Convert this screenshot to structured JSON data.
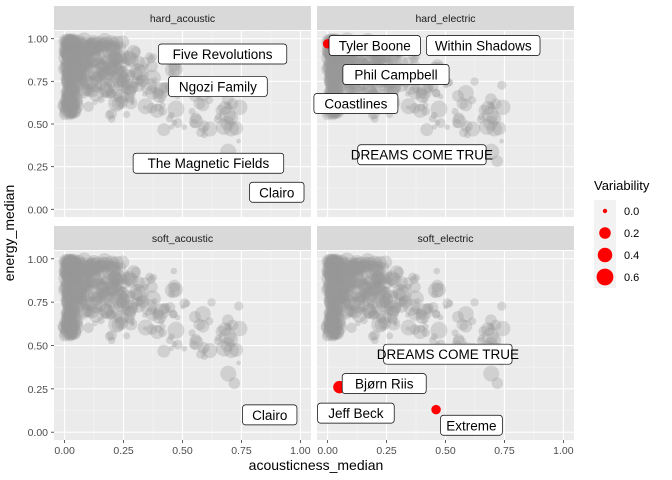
{
  "chart_data": {
    "type": "scatter",
    "xlabel": "acousticness_median",
    "ylabel": "energy_median",
    "xlim": [
      0,
      1
    ],
    "ylim": [
      0,
      1
    ],
    "x_ticks": [
      "0.00",
      "0.25",
      "0.50",
      "0.75",
      "1.00"
    ],
    "y_ticks": [
      "0.00",
      "0.25",
      "0.50",
      "0.75",
      "1.00"
    ],
    "grid": true,
    "legend": {
      "title": "Variability",
      "position": "right",
      "entries": [
        "0.0",
        "0.2",
        "0.4",
        "0.6"
      ],
      "values": [
        0.0,
        0.2,
        0.4,
        0.6
      ],
      "color": "#ff0000"
    },
    "colors": {
      "background_points": "#999999",
      "highlight": "#ff0000",
      "panel": "#ebebeb",
      "strip": "#d9d9d9"
    },
    "panels": [
      {
        "title": "hard_acoustic",
        "highlights": [],
        "labels": [
          {
            "text": "Five Revolutions",
            "x": 0.67,
            "y": 0.91
          },
          {
            "text": "Ngozi Family",
            "x": 0.65,
            "y": 0.72
          },
          {
            "text": "The Magnetic Fields",
            "x": 0.61,
            "y": 0.27
          },
          {
            "text": "Clairo",
            "x": 0.9,
            "y": 0.1
          }
        ]
      },
      {
        "title": "hard_electric",
        "highlights": [
          {
            "x": 0.0,
            "y": 0.97,
            "variability": 0.1
          }
        ],
        "labels": [
          {
            "text": "Tyler Boone",
            "x": 0.2,
            "y": 0.96
          },
          {
            "text": "Within Shadows",
            "x": 0.66,
            "y": 0.96
          },
          {
            "text": "Phil Campbell",
            "x": 0.29,
            "y": 0.79
          },
          {
            "text": "Coastlines",
            "x": 0.12,
            "y": 0.62
          },
          {
            "text": "DREAMS COME TRUE",
            "x": 0.4,
            "y": 0.32
          }
        ]
      },
      {
        "title": "soft_acoustic",
        "highlights": [],
        "labels": [
          {
            "text": "Clairo",
            "x": 0.87,
            "y": 0.1
          }
        ]
      },
      {
        "title": "soft_electric",
        "highlights": [
          {
            "x": 0.05,
            "y": 0.26,
            "variability": 0.25
          },
          {
            "x": 0.46,
            "y": 0.13,
            "variability": 0.1
          }
        ],
        "labels": [
          {
            "text": "DREAMS COME TRUE",
            "x": 0.51,
            "y": 0.45
          },
          {
            "text": "Bjørn Riis",
            "x": 0.24,
            "y": 0.28
          },
          {
            "text": "Jeff Beck",
            "x": 0.12,
            "y": 0.11
          },
          {
            "text": "Extreme",
            "x": 0.61,
            "y": 0.04
          }
        ]
      }
    ]
  }
}
